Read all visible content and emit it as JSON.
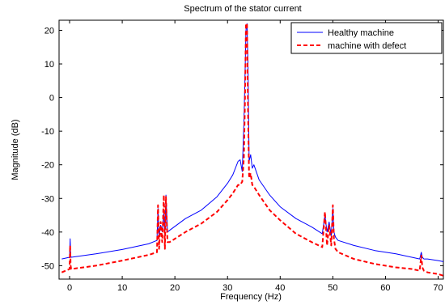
{
  "chart_data": {
    "type": "line",
    "title": "Spectrum of the stator current",
    "xlabel": "Frequency (Hz)",
    "ylabel": "Magnitude (dB)",
    "xlim": [
      -2,
      71
    ],
    "ylim": [
      -54,
      23
    ],
    "xticks": [
      0,
      10,
      20,
      30,
      40,
      50,
      60,
      70
    ],
    "yticks": [
      -50,
      -40,
      -30,
      -20,
      -10,
      0,
      10,
      20
    ],
    "grid": false,
    "legend_position": "top-right",
    "series": [
      {
        "name": "Healthy machine",
        "color": "#0000ff",
        "style": "solid",
        "x": [
          -1.5,
          0,
          0.1,
          0.2,
          0.3,
          5,
          10,
          15,
          16.6,
          16.8,
          17,
          17.3,
          17.6,
          17.9,
          18.1,
          18.3,
          18.6,
          19,
          22,
          25,
          28,
          30,
          31,
          32,
          32.4,
          32.8,
          33.1,
          33.3,
          33.5,
          33.7,
          33.9,
          34.1,
          34.4,
          34.7,
          35,
          36,
          38,
          40,
          43,
          46,
          48,
          48.5,
          48.9,
          49.3,
          49.7,
          50.0,
          50.2,
          50.5,
          51,
          54,
          58,
          62,
          65,
          66.5,
          66.8,
          67.0,
          67.3,
          68,
          70,
          71
        ],
        "y": [
          -48,
          -47.5,
          -42,
          -47,
          -47.5,
          -46.5,
          -45.2,
          -43.5,
          -42.5,
          -33,
          -41,
          -38,
          -40,
          -34,
          -41,
          -29,
          -40,
          -39.5,
          -36,
          -33.5,
          -29.5,
          -25.5,
          -23,
          -19,
          -18.5,
          -22,
          -8,
          5,
          20,
          22,
          8,
          -19,
          -17,
          -21,
          -20,
          -24.5,
          -29,
          -32.5,
          -36,
          -38.5,
          -40.5,
          -35,
          -40,
          -37,
          -41,
          -33,
          -40,
          -41.5,
          -42.5,
          -44,
          -45.5,
          -46.5,
          -47.5,
          -48,
          -46,
          -47.5,
          -48,
          -48,
          -48.5,
          -48.8
        ]
      },
      {
        "name": "machine with defect",
        "color": "#ff0000",
        "style": "dashed",
        "x": [
          -1.5,
          0,
          0.1,
          0.2,
          0.3,
          5,
          10,
          15,
          16.6,
          16.8,
          17,
          17.3,
          17.6,
          17.9,
          18.1,
          18.3,
          18.6,
          19,
          22,
          25,
          28,
          30,
          31,
          32,
          32.4,
          32.8,
          33.1,
          33.3,
          33.5,
          33.7,
          33.9,
          34.1,
          34.4,
          34.7,
          35,
          36,
          38,
          40,
          43,
          46,
          48,
          48.5,
          48.9,
          49.3,
          49.7,
          50.0,
          50.2,
          50.5,
          51,
          54,
          58,
          62,
          65,
          66.5,
          66.8,
          67.0,
          67.3,
          68,
          70,
          71
        ],
        "y": [
          -52,
          -51,
          -44,
          -50,
          -51,
          -50,
          -48.5,
          -46.8,
          -46,
          -32,
          -45,
          -37,
          -43,
          -29,
          -45,
          -29.5,
          -43,
          -43,
          -40,
          -37.5,
          -34,
          -30.5,
          -28.5,
          -26,
          -26,
          -25,
          -18,
          -2,
          22,
          22,
          -5,
          -24,
          -22.5,
          -26,
          -26.5,
          -29,
          -33.5,
          -36.5,
          -40.5,
          -43,
          -44.5,
          -34,
          -44,
          -38,
          -44,
          -32,
          -42,
          -45,
          -46,
          -48,
          -49.5,
          -50.5,
          -51,
          -51.5,
          -47,
          -50.5,
          -51.5,
          -52,
          -52.5,
          -53
        ]
      }
    ]
  }
}
